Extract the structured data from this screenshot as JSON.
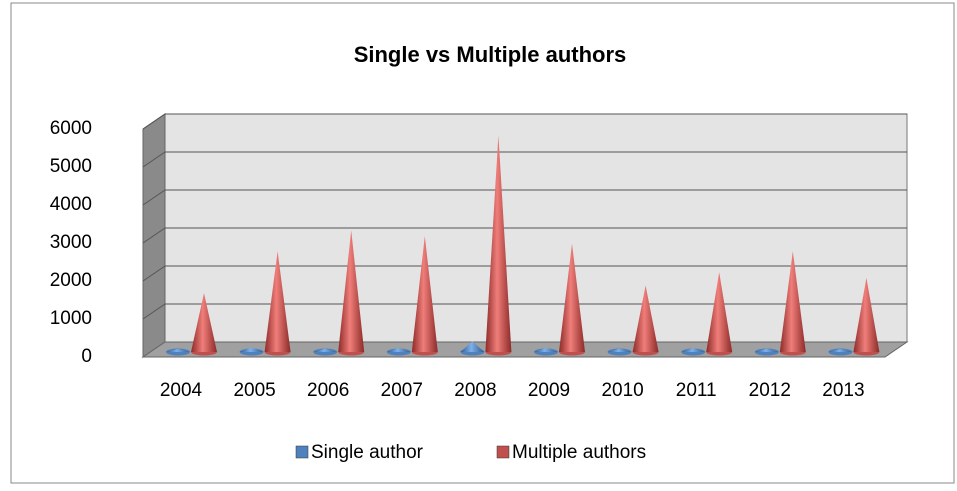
{
  "chart_data": {
    "type": "cone3d",
    "title": "Single vs Multiple authors",
    "categories": [
      "2004",
      "2005",
      "2006",
      "2007",
      "2008",
      "2009",
      "2010",
      "2011",
      "2012",
      "2013"
    ],
    "series": [
      {
        "name": "Single author",
        "color": "#4f81bd",
        "values": [
          80,
          120,
          90,
          110,
          280,
          110,
          90,
          100,
          90,
          80
        ]
      },
      {
        "name": "Multiple authors",
        "color": "#c0504d",
        "values": [
          1550,
          2650,
          3200,
          3050,
          5700,
          2850,
          1750,
          2100,
          2650,
          1950
        ]
      }
    ],
    "ylim": [
      0,
      6000
    ],
    "yticks": [
      0,
      1000,
      2000,
      3000,
      4000,
      5000,
      6000
    ],
    "grid": true,
    "legend": "bottom"
  }
}
